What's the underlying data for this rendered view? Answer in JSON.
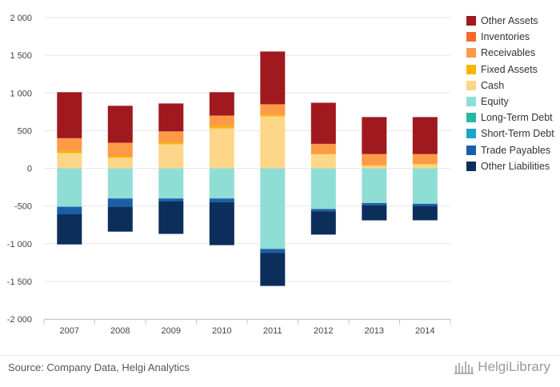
{
  "chart_data": {
    "type": "bar",
    "stacked": true,
    "categories": [
      "2007",
      "2008",
      "2009",
      "2010",
      "2011",
      "2012",
      "2013",
      "2014"
    ],
    "ylim": [
      -2000,
      2000
    ],
    "yticks": [
      2000,
      1500,
      1000,
      500,
      0,
      -500,
      -1000,
      -1500,
      -2000
    ],
    "ytick_labels": [
      "2 000",
      "1 500",
      "1 000",
      "500",
      "0",
      "-500",
      "-1 000",
      "-1 500",
      "-2 000"
    ],
    "grid": true,
    "legend_position": "right",
    "series": [
      {
        "name": "Cash",
        "color": "#fdd68a",
        "values": [
          200,
          140,
          320,
          530,
          690,
          185,
          30,
          50
        ]
      },
      {
        "name": "Fixed Assets",
        "color": "#f7b500",
        "values": [
          30,
          20,
          20,
          30,
          20,
          10,
          10,
          10
        ]
      },
      {
        "name": "Receivables",
        "color": "#fc9a48",
        "values": [
          170,
          180,
          150,
          140,
          140,
          130,
          150,
          130
        ]
      },
      {
        "name": "Inventories",
        "color": "#f76a2a",
        "values": [
          0,
          0,
          0,
          0,
          0,
          0,
          0,
          0
        ]
      },
      {
        "name": "Other Assets",
        "color": "#a0191f",
        "values": [
          610,
          490,
          370,
          310,
          700,
          545,
          490,
          490
        ]
      },
      {
        "name": "Equity",
        "color": "#8fded6",
        "values": [
          -510,
          -400,
          -400,
          -400,
          -1070,
          -540,
          -460,
          -470
        ]
      },
      {
        "name": "Long-Term Debt",
        "color": "#27b8a1",
        "values": [
          0,
          0,
          0,
          0,
          0,
          0,
          0,
          0
        ]
      },
      {
        "name": "Short-Term Debt",
        "color": "#1ba6c8",
        "values": [
          0,
          0,
          0,
          0,
          0,
          0,
          0,
          0
        ]
      },
      {
        "name": "Trade Payables",
        "color": "#1a60a8",
        "values": [
          -100,
          -110,
          -40,
          -50,
          -50,
          -30,
          -30,
          -30
        ]
      },
      {
        "name": "Other Liabilities",
        "color": "#0c2e5a",
        "values": [
          -400,
          -330,
          -430,
          -570,
          -440,
          -310,
          -200,
          -190
        ]
      }
    ],
    "legend_order": [
      "Other Assets",
      "Inventories",
      "Receivables",
      "Fixed Assets",
      "Cash",
      "Equity",
      "Long-Term Debt",
      "Short-Term Debt",
      "Trade Payables",
      "Other Liabilities"
    ]
  },
  "footer": {
    "source": "Source: Company Data, Helgi Analytics",
    "brand": "HelgiLibrary"
  }
}
